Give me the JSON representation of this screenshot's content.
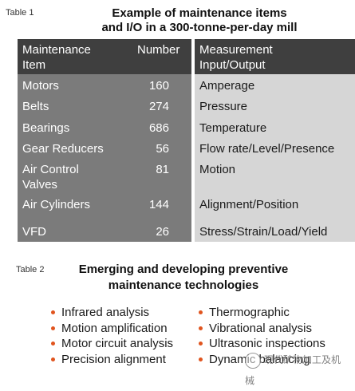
{
  "table1": {
    "label": "Table 1",
    "title_line1": "Example of maintenance items",
    "title_line2": "and I/O in a 300-tonne-per-day mill",
    "headers": {
      "item_line1": "Maintenance",
      "item_line2": "Item",
      "number": "Number",
      "io_line1": "Measurement",
      "io_line2": "Input/Output"
    },
    "rows": [
      {
        "item": "Motors",
        "item2": "",
        "number": "160",
        "io": "Amperage"
      },
      {
        "item": "Belts",
        "item2": "",
        "number": "274",
        "io": "Pressure"
      },
      {
        "item": "Bearings",
        "item2": "",
        "number": "686",
        "io": "Temperature"
      },
      {
        "item": "Gear Reducers",
        "item2": "",
        "number": "56",
        "io": "Flow rate/Level/Presence"
      },
      {
        "item": "Air Control",
        "item2": "Valves",
        "number": "81",
        "io": "Motion"
      },
      {
        "item": "Air Cylinders",
        "item2": "",
        "number": "144",
        "io": "Alignment/Position"
      },
      {
        "item": "VFD",
        "item2": "",
        "number": "26",
        "io": "Stress/Strain/Load/Yield"
      }
    ]
  },
  "table2": {
    "label": "Table 2",
    "title_line1": "Emerging and developing preventive",
    "title_line2": "maintenance technologies",
    "left_items": [
      "Infrared analysis",
      "Motion amplification",
      "Motor circuit analysis",
      "Precision alignment"
    ],
    "right_items": [
      "Thermographic",
      "Vibrational analysis",
      "Ultrasonic inspections",
      "Dynamic balancing"
    ]
  },
  "colors": {
    "bullet": "#e0541e",
    "header_bg": "#3f3f3f",
    "left_col_bg": "#7b7b7b",
    "right_col_bg": "#d6d6d6"
  },
  "watermark": {
    "text": "现代矿物加工及机械"
  }
}
